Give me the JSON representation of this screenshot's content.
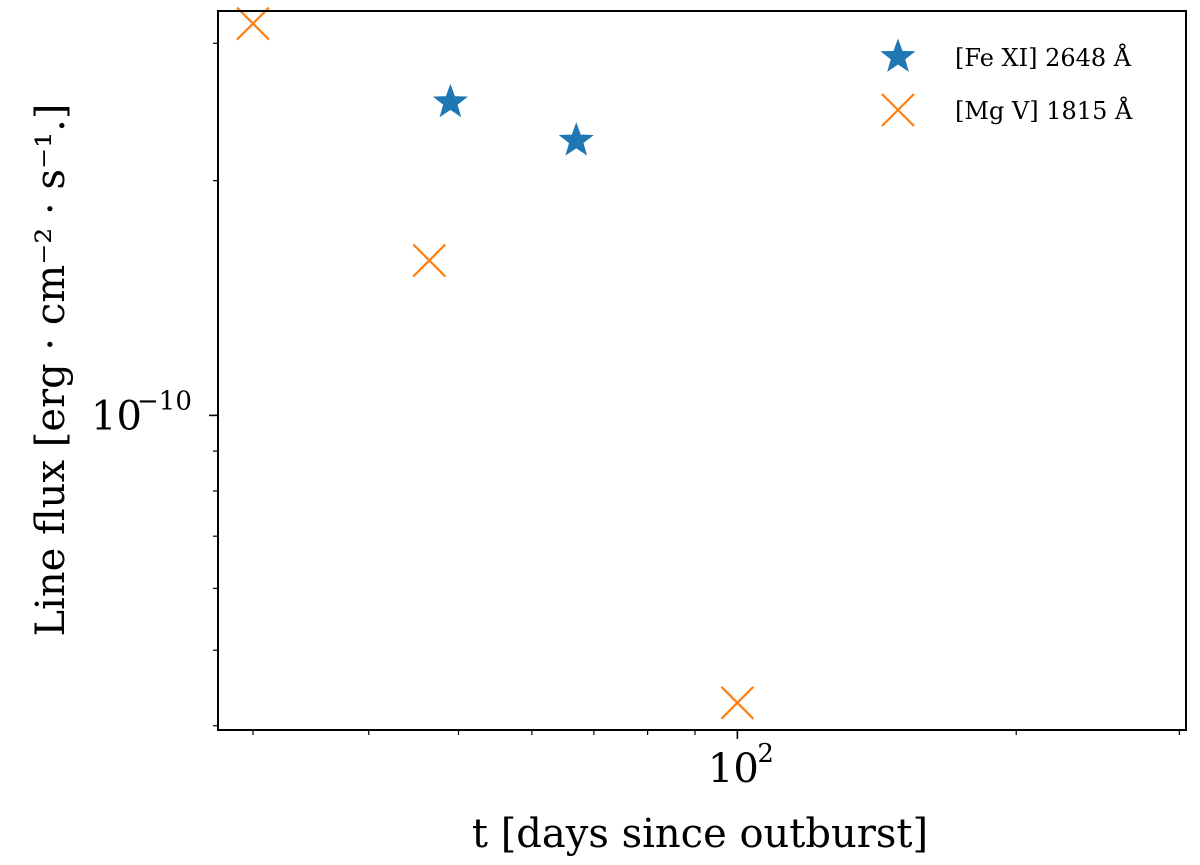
{
  "chart_data": {
    "type": "scatter",
    "xlabel": "t [days since outburst]",
    "ylabel": "Line flux [erg · cm⁻² · s⁻¹.]",
    "xscale": "log",
    "yscale": "log",
    "xlim": [
      27.5,
      305
    ],
    "ylim": [
      3.95e-11,
      3.3e-10
    ],
    "x_major_ticks": [
      {
        "value": 100,
        "base": "10",
        "exp": "2"
      }
    ],
    "x_minor_ticks": [
      30,
      40,
      50,
      60,
      70,
      80,
      90,
      200,
      300
    ],
    "y_major_ticks": [
      {
        "value": 1e-10,
        "base": "10",
        "exp": "−10"
      }
    ],
    "y_minor_ticks": [
      4e-11,
      5e-11,
      6e-11,
      7e-11,
      8e-11,
      9e-11,
      2e-10,
      3e-10
    ],
    "grid": false,
    "legend_position": "upper right",
    "series": [
      {
        "name": "[Fe XI] 2648 Å",
        "marker": "star",
        "color": "#1f77b4",
        "points": [
          {
            "x": 49,
            "y": 2.52e-10
          },
          {
            "x": 67,
            "y": 2.25e-10
          }
        ]
      },
      {
        "name": "[Mg V] 1815 Å",
        "marker": "x",
        "color": "#ff7f0e",
        "points": [
          {
            "x": 30,
            "y": 3.18e-10
          },
          {
            "x": 46.5,
            "y": 1.58e-10
          },
          {
            "x": 100,
            "y": 4.28e-11
          }
        ]
      }
    ]
  }
}
